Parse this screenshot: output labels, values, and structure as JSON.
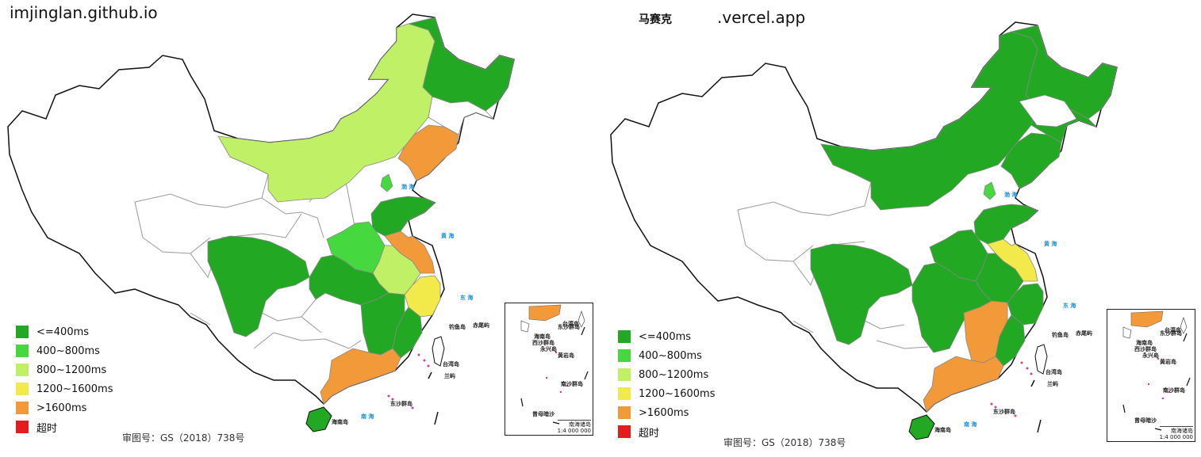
{
  "left_panel": {
    "title": "imjinglan.github.io",
    "approval": "审图号：GS（2018）738号",
    "region_values": {
      "heilongjiang": "<=400ms",
      "jilin": "<=400ms",
      "liaoning": ">1600ms",
      "inner_mongolia": "800~1200ms",
      "beijing": "400~800ms",
      "shandong": "<=400ms",
      "henan": "400~800ms",
      "jiangsu": ">1600ms",
      "anhui": "800~1200ms",
      "zhejiang": "1200~1600ms",
      "sichuan": "<=400ms",
      "chongqing": "<=400ms",
      "hubei": "<=400ms",
      "jiangxi": "<=400ms",
      "fujian": "<=400ms",
      "guangdong": ">1600ms",
      "hainan": "<=400ms"
    }
  },
  "right_panel": {
    "title_bold": "马赛克",
    "title": ".vercel.app",
    "approval": "审图号：GS（2018）738号",
    "region_values": {
      "heilongjiang": "<=400ms",
      "jilin": "<=400ms",
      "liaoning": "<=400ms",
      "inner_mongolia": "<=400ms",
      "beijing": "400~800ms",
      "shandong": "<=400ms",
      "henan": "<=400ms",
      "jiangsu": "1200~1600ms",
      "anhui": "<=400ms",
      "zhejiang": "<=400ms",
      "sichuan": "<=400ms",
      "chongqing": "<=400ms",
      "hubei": "<=400ms",
      "hunan": "<=400ms",
      "jiangxi": ">1600ms",
      "fujian": "<=400ms",
      "guangdong": ">1600ms",
      "hainan": "<=400ms",
      "shanxi": "<=400ms"
    }
  },
  "legend": [
    {
      "label": "<=400ms",
      "color": "#22a822"
    },
    {
      "label": "400~800ms",
      "color": "#46d93f"
    },
    {
      "label": "800~1200ms",
      "color": "#c0f065"
    },
    {
      "label": "1200~1600ms",
      "color": "#f2e94a"
    },
    {
      "label": ">1600ms",
      "color": "#f29a3a"
    },
    {
      "label": "超时",
      "color": "#e51c1c"
    }
  ],
  "map_labels": {
    "bohai": "渤 海",
    "huanghai": "黄 海",
    "donghai": "东 海",
    "nanhai": "南 海",
    "taiwan": "台湾岛",
    "diaoyu": "钓鱼岛",
    "chiwei": "赤尾屿",
    "lanyu": "兰屿",
    "dongsha": "东沙群岛",
    "hainan": "海南岛",
    "inset_title": "南海诸岛",
    "inset_scale": "1:4 000 000",
    "inset_taiwan": "台湾岛",
    "inset_dongsha": "东沙群岛",
    "inset_hainan": "海南岛",
    "inset_xisha": "西沙群岛",
    "inset_yongxing": "永兴岛",
    "inset_huangyan": "黄岩岛",
    "inset_zengmu": "曾母暗沙",
    "inset_nansha": "南沙群岛"
  }
}
